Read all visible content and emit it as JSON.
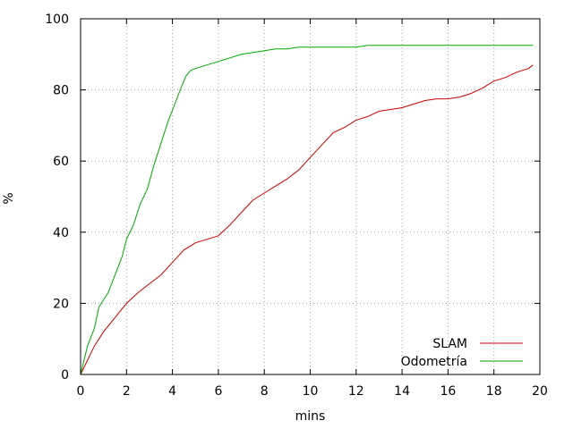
{
  "chart_data": {
    "type": "line",
    "xlabel": "mins",
    "ylabel": "%",
    "xlim": [
      0,
      20
    ],
    "ylim": [
      0,
      100
    ],
    "xticks": [
      0,
      2,
      4,
      6,
      8,
      10,
      12,
      14,
      16,
      18,
      20
    ],
    "yticks": [
      0,
      20,
      40,
      60,
      80,
      100
    ],
    "grid": true,
    "legend_position": "bottom-right",
    "series": [
      {
        "name": "SLAM",
        "color": "#cc0000",
        "x": [
          0,
          0.3,
          0.6,
          1.0,
          1.5,
          2.0,
          2.5,
          3.0,
          3.5,
          4.0,
          4.5,
          5.0,
          5.5,
          6.0,
          6.5,
          7.0,
          7.5,
          8.0,
          8.5,
          9.0,
          9.5,
          10.0,
          10.5,
          11.0,
          11.5,
          12.0,
          12.5,
          13.0,
          13.5,
          14.0,
          14.5,
          15.0,
          15.5,
          16.0,
          16.5,
          17.0,
          17.5,
          18.0,
          18.5,
          19.0,
          19.5,
          19.7
        ],
        "y": [
          0,
          4,
          8,
          12,
          16,
          20,
          23,
          25.5,
          28,
          31.5,
          35,
          37,
          38,
          39,
          42,
          45.5,
          49,
          51,
          53,
          55,
          57.5,
          61,
          64.5,
          68,
          69.5,
          71.5,
          72.5,
          74,
          74.5,
          75,
          76,
          77,
          77.5,
          77.5,
          78,
          79,
          80.5,
          82.5,
          83.5,
          85,
          86,
          87
        ]
      },
      {
        "name": "Odometría",
        "color": "#00aa00",
        "x": [
          0,
          0.3,
          0.6,
          0.8,
          1.0,
          1.2,
          1.5,
          1.8,
          2.0,
          2.3,
          2.6,
          2.9,
          3.2,
          3.5,
          3.8,
          4.1,
          4.4,
          4.6,
          4.8,
          5.0,
          5.5,
          6.0,
          6.5,
          7.0,
          7.5,
          8.0,
          8.5,
          9.0,
          9.5,
          10.0,
          11.0,
          12.0,
          12.5,
          14.0,
          16.0,
          18.0,
          19.7
        ],
        "y": [
          0,
          8,
          13,
          19,
          21,
          23,
          28,
          33,
          38,
          42,
          48,
          52,
          59,
          65,
          71,
          76,
          81,
          84,
          85.5,
          86,
          87,
          88,
          89,
          90,
          90.5,
          91,
          91.5,
          91.5,
          92,
          92,
          92,
          92,
          92.5,
          92.5,
          92.5,
          92.5,
          92.5
        ]
      }
    ]
  }
}
